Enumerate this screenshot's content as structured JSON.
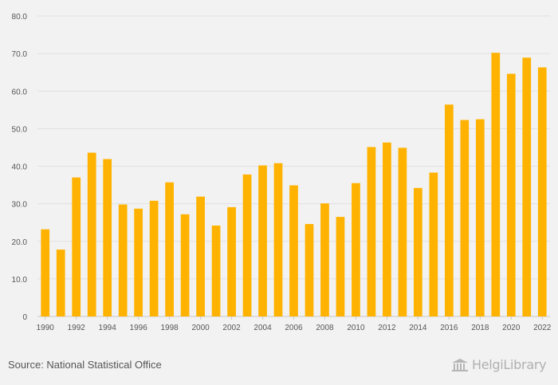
{
  "chart_data": {
    "type": "bar",
    "title": "",
    "xlabel": "",
    "ylabel": "",
    "ylim": [
      0,
      80
    ],
    "grid": true,
    "bar_color": "#ffb300",
    "y_ticks": [
      "0",
      "10.0",
      "20.0",
      "30.0",
      "40.0",
      "50.0",
      "60.0",
      "70.0",
      "80.0"
    ],
    "x_tick_labels": [
      "1990",
      "1992",
      "1994",
      "1996",
      "1998",
      "2000",
      "2002",
      "2004",
      "2006",
      "2008",
      "2010",
      "2012",
      "2014",
      "2016",
      "2018",
      "2020",
      "2022"
    ],
    "categories": [
      "1990",
      "1991",
      "1992",
      "1993",
      "1994",
      "1995",
      "1996",
      "1997",
      "1998",
      "1999",
      "2000",
      "2001",
      "2002",
      "2003",
      "2004",
      "2005",
      "2006",
      "2007",
      "2008",
      "2009",
      "2010",
      "2011",
      "2012",
      "2013",
      "2014",
      "2015",
      "2016",
      "2017",
      "2018",
      "2019",
      "2020",
      "2021",
      "2022"
    ],
    "values": [
      23.2,
      17.8,
      37.0,
      43.6,
      41.9,
      29.8,
      28.7,
      30.8,
      35.7,
      27.2,
      31.9,
      24.2,
      29.1,
      37.8,
      40.2,
      40.8,
      34.9,
      24.6,
      30.1,
      26.5,
      35.5,
      45.1,
      46.3,
      44.9,
      34.2,
      38.3,
      56.4,
      52.3,
      52.5,
      70.2,
      64.6,
      68.9,
      66.3
    ]
  },
  "footer": {
    "source": "Source: National Statistical Office",
    "brand": "HelgiLibrary"
  }
}
